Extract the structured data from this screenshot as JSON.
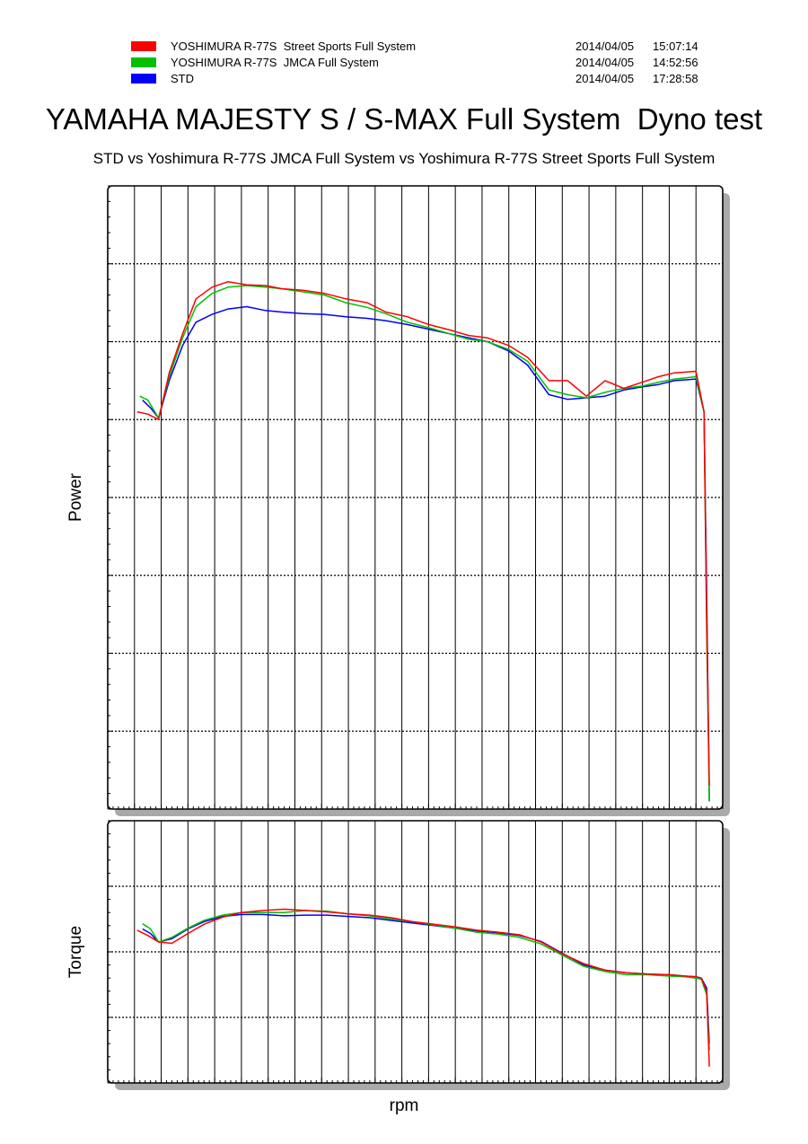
{
  "legend": [
    {
      "name": "YOSHIMURA R-77S  Street Sports Full System",
      "date": "2014/04/05",
      "time": "15:07:14",
      "color": "#ff0000"
    },
    {
      "name": "YOSHIMURA R-77S  JMCA Full System",
      "date": "2014/04/05",
      "time": "14:52:56",
      "color": "#00c000"
    },
    {
      "name": "STD",
      "date": "2014/04/05",
      "time": "17:28:58",
      "color": "#0000ff"
    }
  ],
  "title": "YAMAHA MAJESTY S / S-MAX Full System  Dyno test",
  "subtitle": "STD vs Yoshimura R-77S JMCA Full System vs Yoshimura R-77S Street Sports Full System",
  "chart_data": [
    {
      "type": "line",
      "title": "",
      "ylabel": "Power",
      "xlabel": "rpm",
      "x_range": [
        0,
        23
      ],
      "y_range": [
        0,
        8
      ],
      "grid": true,
      "series": [
        {
          "name": "YOSHIMURA R-77S  Street Sports Full System",
          "color": "#ff0000",
          "x": [
            1.1,
            1.5,
            1.9,
            2.3,
            2.8,
            3.3,
            3.9,
            4.5,
            5.2,
            5.9,
            6.5,
            7.3,
            8.1,
            8.9,
            9.7,
            10.4,
            11.2,
            12.0,
            12.8,
            13.5,
            14.2,
            15.0,
            15.7,
            16.5,
            17.2,
            17.9,
            18.6,
            19.3,
            20.0,
            20.6,
            21.2,
            22.0,
            22.3,
            22.4,
            22.5
          ],
          "y": [
            5.1,
            5.07,
            5.0,
            5.6,
            6.1,
            6.55,
            6.7,
            6.77,
            6.73,
            6.72,
            6.68,
            6.66,
            6.62,
            6.55,
            6.5,
            6.38,
            6.32,
            6.22,
            6.15,
            6.08,
            6.05,
            5.95,
            5.8,
            5.5,
            5.5,
            5.3,
            5.5,
            5.4,
            5.48,
            5.55,
            5.6,
            5.62,
            5.1,
            2.5,
            0.3
          ]
        },
        {
          "name": "YOSHIMURA R-77S  JMCA Full System",
          "color": "#00c000",
          "x": [
            1.2,
            1.5,
            1.9,
            2.3,
            2.8,
            3.3,
            3.9,
            4.5,
            5.2,
            5.9,
            6.5,
            7.3,
            8.1,
            8.9,
            9.7,
            10.4,
            11.2,
            12.0,
            12.8,
            13.5,
            14.2,
            15.0,
            15.7,
            16.5,
            17.2,
            17.9,
            18.6,
            19.3,
            20.0,
            20.6,
            21.2,
            22.0,
            22.3,
            22.4,
            22.5
          ],
          "y": [
            5.3,
            5.25,
            5.02,
            5.55,
            6.05,
            6.45,
            6.62,
            6.7,
            6.72,
            6.7,
            6.68,
            6.64,
            6.6,
            6.5,
            6.44,
            6.36,
            6.25,
            6.18,
            6.1,
            6.03,
            6.0,
            5.9,
            5.75,
            5.38,
            5.32,
            5.28,
            5.35,
            5.4,
            5.43,
            5.48,
            5.52,
            5.55,
            5.1,
            2.3,
            0.1
          ]
        },
        {
          "name": "STD",
          "color": "#0000ff",
          "x": [
            1.3,
            1.6,
            1.9,
            2.3,
            2.8,
            3.3,
            3.9,
            4.5,
            5.2,
            5.9,
            6.5,
            7.3,
            8.1,
            8.9,
            9.7,
            10.4,
            11.2,
            12.0,
            12.8,
            13.5,
            14.2,
            15.0,
            15.7,
            16.5,
            17.2,
            17.9,
            18.6,
            19.3,
            20.0,
            20.6,
            21.2,
            22.0,
            22.3,
            22.4,
            22.5
          ],
          "y": [
            5.25,
            5.15,
            5.02,
            5.5,
            5.95,
            6.25,
            6.35,
            6.42,
            6.45,
            6.4,
            6.38,
            6.36,
            6.35,
            6.32,
            6.3,
            6.27,
            6.22,
            6.16,
            6.1,
            6.05,
            6.0,
            5.88,
            5.7,
            5.32,
            5.26,
            5.28,
            5.3,
            5.38,
            5.42,
            5.45,
            5.5,
            5.52,
            5.1,
            2.8,
            0.1
          ]
        }
      ]
    },
    {
      "type": "line",
      "title": "",
      "ylabel": "Torque",
      "xlabel": "rpm",
      "x_range": [
        0,
        23
      ],
      "y_range": [
        0,
        4
      ],
      "grid": true,
      "series": [
        {
          "name": "YOSHIMURA R-77S  Street Sports Full System",
          "color": "#ff0000",
          "x": [
            1.1,
            1.5,
            1.9,
            2.4,
            3.0,
            3.6,
            4.3,
            5.0,
            5.8,
            6.6,
            7.4,
            8.2,
            9.0,
            9.8,
            10.6,
            11.4,
            12.2,
            13.0,
            13.8,
            14.6,
            15.4,
            16.2,
            17.0,
            17.8,
            18.6,
            19.4,
            20.2,
            21.0,
            21.6,
            22.0,
            22.2,
            22.4,
            22.5
          ],
          "y": [
            2.33,
            2.25,
            2.15,
            2.13,
            2.28,
            2.42,
            2.53,
            2.6,
            2.63,
            2.65,
            2.63,
            2.61,
            2.58,
            2.56,
            2.52,
            2.46,
            2.42,
            2.38,
            2.33,
            2.3,
            2.26,
            2.15,
            1.97,
            1.82,
            1.72,
            1.68,
            1.66,
            1.65,
            1.63,
            1.62,
            1.6,
            1.4,
            0.25
          ]
        },
        {
          "name": "YOSHIMURA R-77S  JMCA Full System",
          "color": "#00c000",
          "x": [
            1.3,
            1.6,
            1.9,
            2.4,
            3.0,
            3.6,
            4.3,
            5.0,
            5.8,
            6.6,
            7.4,
            8.2,
            9.0,
            9.8,
            10.6,
            11.4,
            12.2,
            13.0,
            13.8,
            14.6,
            15.4,
            16.2,
            17.0,
            17.8,
            18.6,
            19.4,
            20.2,
            21.0,
            21.6,
            22.0,
            22.2,
            22.4,
            22.5
          ],
          "y": [
            2.43,
            2.35,
            2.15,
            2.22,
            2.36,
            2.48,
            2.56,
            2.6,
            2.6,
            2.6,
            2.63,
            2.62,
            2.58,
            2.55,
            2.5,
            2.46,
            2.41,
            2.36,
            2.3,
            2.27,
            2.22,
            2.12,
            1.95,
            1.78,
            1.7,
            1.65,
            1.65,
            1.63,
            1.62,
            1.6,
            1.58,
            1.35,
            0.5
          ]
        },
        {
          "name": "STD",
          "color": "#0000ff",
          "x": [
            1.3,
            1.6,
            1.9,
            2.4,
            3.0,
            3.6,
            4.3,
            5.0,
            5.8,
            6.6,
            7.4,
            8.2,
            9.0,
            9.8,
            10.6,
            11.4,
            12.2,
            13.0,
            13.8,
            14.6,
            15.4,
            16.2,
            17.0,
            17.8,
            18.6,
            19.4,
            20.2,
            21.0,
            21.6,
            22.0,
            22.2,
            22.4,
            22.5
          ],
          "y": [
            2.35,
            2.28,
            2.15,
            2.2,
            2.35,
            2.46,
            2.54,
            2.57,
            2.57,
            2.55,
            2.56,
            2.56,
            2.54,
            2.52,
            2.48,
            2.44,
            2.4,
            2.36,
            2.32,
            2.29,
            2.25,
            2.16,
            1.98,
            1.8,
            1.72,
            1.68,
            1.66,
            1.65,
            1.63,
            1.62,
            1.6,
            1.45,
            0.6
          ]
        }
      ]
    }
  ]
}
